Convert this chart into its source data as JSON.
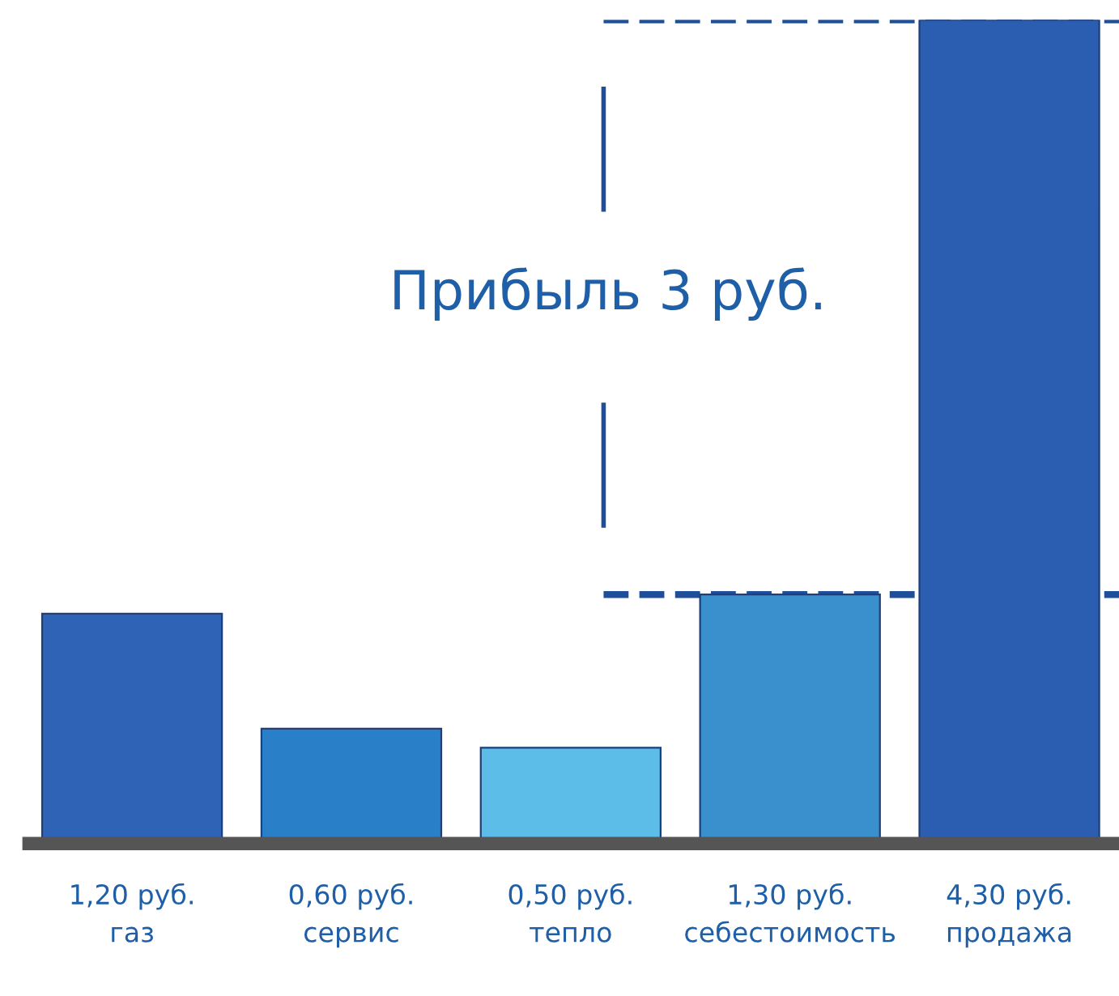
{
  "chart_data": {
    "type": "bar",
    "categories": [
      "газ",
      "сервис",
      "тепло",
      "себестоимость",
      "продажа"
    ],
    "values": [
      1.2,
      0.6,
      0.5,
      1.3,
      4.3
    ],
    "value_labels": [
      "1,20 руб.",
      "0,60 руб.",
      "0,50 руб.",
      "1,30 руб.",
      "4,30 руб."
    ],
    "colors": [
      "#2f63b6",
      "#2a80c8",
      "#5cbde8",
      "#3a90cc",
      "#2b5eb1"
    ],
    "ref_lines": [
      {
        "axis": "y",
        "value": 0,
        "color": "#555555",
        "line_style": "solid"
      },
      {
        "axis": "y",
        "value": 4.3,
        "color": "#1f4f9a",
        "line_style": "dashed"
      },
      {
        "axis": "y",
        "value": 1.3,
        "color": "#1f4f9a",
        "line_style": "dashed"
      }
    ],
    "annotations": [
      "Прибыль 3 руб."
    ],
    "tick_labels": "x",
    "grid": false,
    "legend": false
  }
}
